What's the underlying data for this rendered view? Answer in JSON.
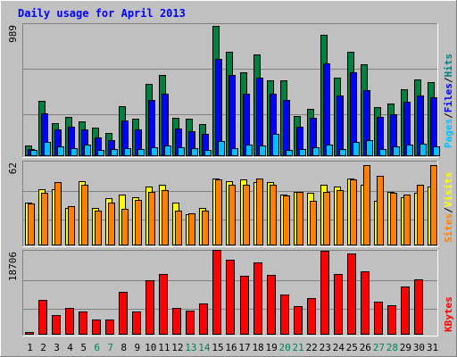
{
  "chart_data": [
    {
      "type": "bar",
      "title": "Daily usage for April 2013",
      "categories": [
        "1",
        "2",
        "3",
        "4",
        "5",
        "6",
        "7",
        "8",
        "9",
        "10",
        "11",
        "12",
        "13",
        "14",
        "15",
        "16",
        "17",
        "18",
        "19",
        "20",
        "21",
        "22",
        "23",
        "24",
        "25",
        "26",
        "27",
        "28",
        "29",
        "30",
        "31"
      ],
      "weekend_days": [
        "6",
        "7",
        "13",
        "14",
        "20",
        "21",
        "27",
        "28"
      ],
      "ymax_label": "989",
      "ylim": [
        0,
        989
      ],
      "legend": [
        "Pages",
        "/",
        "Files",
        "/",
        "Hits"
      ],
      "series": [
        {
          "name": "Hits",
          "values": [
            80,
            420,
            250,
            295,
            265,
            215,
            175,
            380,
            285,
            545,
            615,
            290,
            280,
            240,
            982,
            785,
            630,
            765,
            575,
            570,
            300,
            355,
            915,
            595,
            785,
            690,
            370,
            400,
            505,
            580,
            560
          ]
        },
        {
          "name": "Files",
          "values": [
            55,
            320,
            200,
            225,
            205,
            140,
            120,
            270,
            200,
            425,
            470,
            210,
            190,
            165,
            730,
            615,
            470,
            595,
            470,
            425,
            220,
            290,
            700,
            455,
            635,
            500,
            295,
            315,
            410,
            460,
            445
          ]
        },
        {
          "name": "Pages",
          "values": [
            50,
            105,
            75,
            60,
            85,
            45,
            55,
            60,
            55,
            65,
            80,
            70,
            60,
            50,
            115,
            60,
            85,
            80,
            165,
            50,
            55,
            70,
            85,
            55,
            105,
            120,
            55,
            75,
            85,
            95,
            75
          ]
        }
      ],
      "colors": {
        "Hits": "#008040",
        "Files": "#0000ff",
        "Pages": "#00c0ff"
      }
    },
    {
      "type": "bar",
      "categories": [
        "1",
        "2",
        "3",
        "4",
        "5",
        "6",
        "7",
        "8",
        "9",
        "10",
        "11",
        "12",
        "13",
        "14",
        "15",
        "16",
        "17",
        "18",
        "19",
        "20",
        "21",
        "22",
        "23",
        "24",
        "25",
        "26",
        "27",
        "28",
        "29",
        "30",
        "31"
      ],
      "ymax_label": "62",
      "ylim": [
        0,
        62
      ],
      "legend": [
        "Sites",
        "/",
        "Visits"
      ],
      "series": [
        {
          "name": "Visits",
          "values": [
            32,
            42,
            42,
            28,
            48,
            28,
            35,
            38,
            36,
            44,
            45,
            32,
            23,
            28,
            50,
            48,
            49,
            47,
            47,
            38,
            40,
            39,
            45,
            44,
            50,
            45,
            33,
            40,
            36,
            39,
            44
          ]
        },
        {
          "name": "Sites",
          "values": [
            31,
            39,
            47,
            29,
            45,
            26,
            32,
            27,
            34,
            40,
            41,
            26,
            24,
            26,
            49,
            45,
            45,
            50,
            45,
            37,
            40,
            33,
            40,
            41,
            49,
            60,
            52,
            39,
            38,
            45,
            60
          ]
        }
      ],
      "colors": {
        "Visits": "#ffff00",
        "Sites": "#ff8000"
      }
    },
    {
      "type": "bar",
      "categories": [
        "1",
        "2",
        "3",
        "4",
        "5",
        "6",
        "7",
        "8",
        "9",
        "10",
        "11",
        "12",
        "13",
        "14",
        "15",
        "16",
        "17",
        "18",
        "19",
        "20",
        "21",
        "22",
        "23",
        "24",
        "25",
        "26",
        "27",
        "28",
        "29",
        "30",
        "31"
      ],
      "ymax_label": "18706",
      "ylim": [
        0,
        18706
      ],
      "legend": [
        "KBytes"
      ],
      "series": [
        {
          "name": "KBytes",
          "values": [
            600,
            7900,
            4400,
            6000,
            5200,
            3400,
            3400,
            9600,
            5200,
            12200,
            13600,
            6100,
            5500,
            7100,
            19100,
            16900,
            13200,
            16300,
            13500,
            9000,
            6400,
            8200,
            19000,
            13600,
            18400,
            14300,
            7500,
            6600,
            10800,
            12500,
            0
          ]
        }
      ],
      "colors": {
        "KBytes": "#ff0000"
      }
    }
  ]
}
